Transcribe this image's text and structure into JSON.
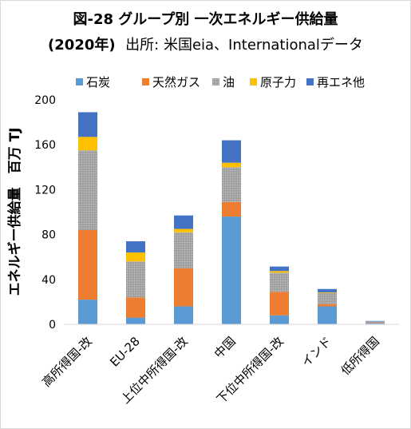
{
  "chart_data": {
    "type": "bar",
    "stacked": true,
    "title": "図-28 グループ別 一次エネルギー供給量",
    "subtitle_year": "(2020年)",
    "subtitle_source": "出所: 米国eia、Internationalデータ",
    "ylabel": "エネルギー供給量　百万 TJ",
    "xlabel": "",
    "ylim": [
      0,
      200
    ],
    "yticks": [
      "0",
      "40",
      "80",
      "120",
      "160",
      "200"
    ],
    "grid": false,
    "legend_position": "top",
    "categories": [
      "高所得国-改",
      "EU-28",
      "上位中所得国-改",
      "中国",
      "下位中所得国-改",
      "インド",
      "低所得国"
    ],
    "series": [
      {
        "name": "石炭",
        "color": "#5b9bd5",
        "values": [
          22,
          6,
          16,
          96,
          8,
          16,
          1
        ]
      },
      {
        "name": "天然ガス",
        "color": "#ed7d31",
        "values": [
          62,
          18,
          34,
          13,
          21,
          2,
          0.3
        ]
      },
      {
        "name": "油",
        "color": "#a5a5a5",
        "values": [
          71,
          32,
          32,
          31,
          17,
          10,
          1.3
        ]
      },
      {
        "name": "原子力",
        "color": "#ffc000",
        "values": [
          12,
          8,
          3,
          4,
          1.5,
          0.5,
          0
        ]
      },
      {
        "name": "再エネ他",
        "color": "#4472c4",
        "values": [
          22,
          10,
          12,
          20,
          4,
          3,
          0.4
        ]
      }
    ]
  }
}
